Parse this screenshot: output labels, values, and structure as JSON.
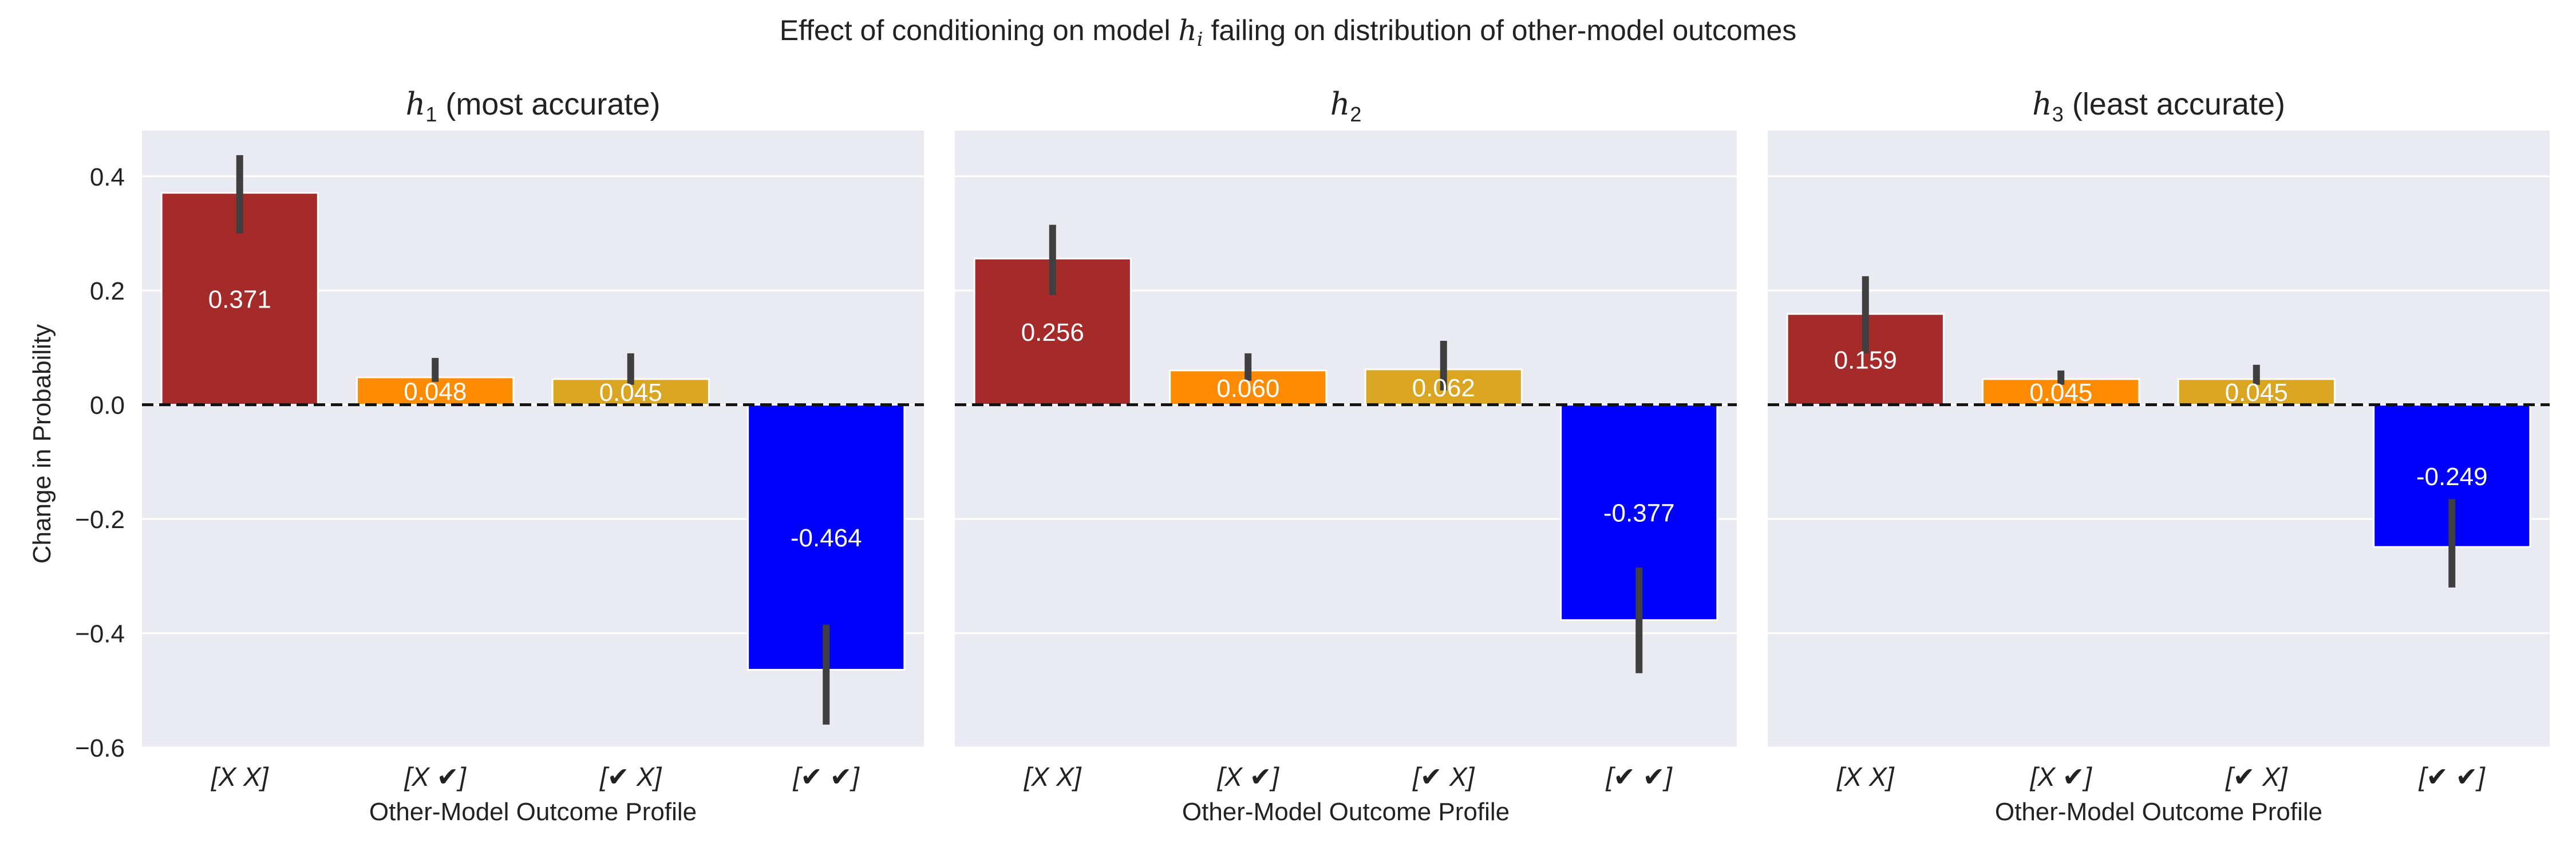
{
  "chart_data": {
    "type": "bar",
    "title_prefix": "Effect of conditioning on model ",
    "title_var": "h",
    "title_sub": "i",
    "title_suffix": " failing on distribution of other-model outcomes",
    "title": "Effect of conditioning on model h_i failing on distribution of other-model outcomes",
    "ylabel": "Change in Probability",
    "ylim": [
      -0.6,
      0.48
    ],
    "yticks": [
      0.4,
      0.2,
      0.0,
      -0.2,
      -0.4,
      -0.6
    ],
    "ytick_labels": [
      "0.4",
      "0.2",
      "0.0",
      "−0.2",
      "−0.4",
      "−0.6"
    ],
    "categories": [
      "[X X]",
      "[X ✔]",
      "[✔ X]",
      "[✔ ✔]"
    ],
    "colors": [
      "#a52a2a",
      "#ff8c00",
      "#daa520",
      "#0000ff"
    ],
    "panels": [
      {
        "var": "h",
        "sub": "1",
        "title_suffix": " (most accurate)",
        "xlabel": "Other-Model Outcome Profile",
        "values": [
          0.371,
          0.048,
          0.045,
          -0.464
        ],
        "labels": [
          "0.371",
          "0.048",
          "0.045",
          "-0.464"
        ],
        "err_low": [
          0.3,
          0.04,
          0.035,
          -0.56
        ],
        "err_high": [
          0.437,
          0.082,
          0.09,
          -0.385
        ]
      },
      {
        "var": "h",
        "sub": "2",
        "title_suffix": "",
        "xlabel": "Other-Model Outcome Profile",
        "values": [
          0.256,
          0.06,
          0.062,
          -0.377
        ],
        "labels": [
          "0.256",
          "0.060",
          "0.062",
          "-0.377"
        ],
        "err_low": [
          0.192,
          0.042,
          0.025,
          -0.47
        ],
        "err_high": [
          0.315,
          0.09,
          0.112,
          -0.285
        ]
      },
      {
        "var": "h",
        "sub": "3",
        "title_suffix": " (least accurate)",
        "xlabel": "Other-Model Outcome Profile",
        "values": [
          0.159,
          0.045,
          0.045,
          -0.249
        ],
        "labels": [
          "0.159",
          "0.045",
          "0.045",
          "-0.249"
        ],
        "err_low": [
          0.09,
          0.035,
          0.035,
          -0.32
        ],
        "err_high": [
          0.225,
          0.06,
          0.07,
          -0.165
        ]
      }
    ]
  }
}
